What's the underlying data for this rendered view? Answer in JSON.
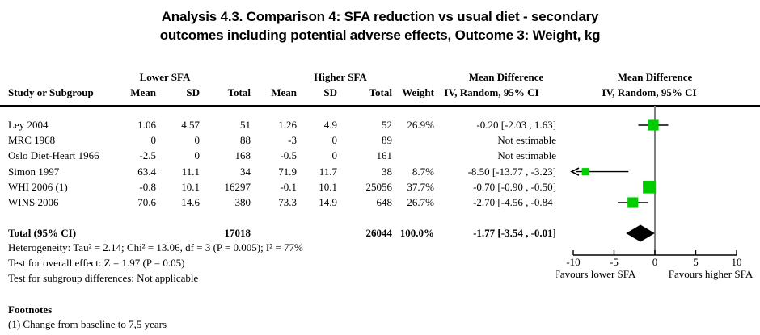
{
  "title": {
    "line1": "Analysis 4.3.   Comparison 4: SFA reduction vs usual diet - secondary",
    "line2": "outcomes including potential adverse effects, Outcome 3: Weight, kg"
  },
  "header": {
    "study": "Study or Subgroup",
    "lower_group": "Lower SFA",
    "higher_group": "Higher SFA",
    "mean": "Mean",
    "sd": "SD",
    "total": "Total",
    "weight": "Weight",
    "md_group": "Mean Difference",
    "ci_label": "IV, Random, 95% CI"
  },
  "rows": [
    {
      "study": "Ley 2004",
      "mean1": "1.06",
      "sd1": "4.57",
      "total1": "51",
      "mean2": "1.26",
      "sd2": "4.9",
      "total2": "52",
      "weight": "26.9%",
      "md": "-0.20 [-2.03 , 1.63]"
    },
    {
      "study": "MRC 1968",
      "mean1": "0",
      "sd1": "0",
      "total1": "88",
      "mean2": "-3",
      "sd2": "0",
      "total2": "89",
      "weight": "",
      "md": "Not estimable"
    },
    {
      "study": "Oslo Diet-Heart 1966",
      "mean1": "-2.5",
      "sd1": "0",
      "total1": "168",
      "mean2": "-0.5",
      "sd2": "0",
      "total2": "161",
      "weight": "",
      "md": "Not estimable"
    },
    {
      "study": "Simon 1997",
      "mean1": "63.4",
      "sd1": "11.1",
      "total1": "34",
      "mean2": "71.9",
      "sd2": "11.7",
      "total2": "38",
      "weight": "8.7%",
      "md": "-8.50 [-13.77 , -3.23]"
    },
    {
      "study": "WHI 2006 (1)",
      "mean1": "-0.8",
      "sd1": "10.1",
      "total1": "16297",
      "mean2": "-0.1",
      "sd2": "10.1",
      "total2": "25056",
      "weight": "37.7%",
      "md": "-0.70 [-0.90 , -0.50]"
    },
    {
      "study": "WINS 2006",
      "mean1": "70.6",
      "sd1": "14.6",
      "total1": "380",
      "mean2": "73.3",
      "sd2": "14.9",
      "total2": "648",
      "weight": "26.7%",
      "md": "-2.70 [-4.56 , -0.84]"
    }
  ],
  "total_row": {
    "label": "Total (95% CI)",
    "total1": "17018",
    "total2": "26044",
    "weight": "100.0%",
    "md": "-1.77 [-3.54 , -0.01]"
  },
  "stats": {
    "heterogeneity": "Heterogeneity: Tau² = 2.14; Chi² = 13.06, df = 3 (P = 0.005); I² = 77%",
    "overall_effect": "Test for overall effect: Z = 1.97 (P = 0.05)",
    "subgroup": "Test for subgroup differences: Not applicable"
  },
  "footnotes": {
    "heading": "Footnotes",
    "items": [
      "(1) Change from baseline to 7,5 years"
    ]
  },
  "chart_data": {
    "type": "forest",
    "title": "SFA reduction vs usual diet - Weight, kg - Mean Difference IV, Random, 95% CI",
    "axis": {
      "min": -10,
      "max": 10,
      "ticks": [
        -10,
        -5,
        0,
        5,
        10
      ],
      "favours_left": "Favours lower SFA",
      "favours_right": "Favours higher SFA"
    },
    "studies": [
      {
        "name": "Ley 2004",
        "row": 0,
        "md": -0.2,
        "ci_low": -2.03,
        "ci_high": 1.63,
        "weight": 26.9
      },
      {
        "name": "Simon 1997",
        "row": 3,
        "md": -8.5,
        "ci_low": -13.77,
        "ci_high": -3.23,
        "weight": 8.7
      },
      {
        "name": "WHI 2006 (1)",
        "row": 4,
        "md": -0.7,
        "ci_low": -0.9,
        "ci_high": -0.5,
        "weight": 37.7
      },
      {
        "name": "WINS 2006",
        "row": 5,
        "md": -2.7,
        "ci_low": -4.56,
        "ci_high": -0.84,
        "weight": 26.7
      }
    ],
    "total": {
      "md": -1.77,
      "ci_low": -3.54,
      "ci_high": -0.01
    },
    "marker_color": "#00cc00",
    "diamond_color": "#000000",
    "zero_line_color": "#808080",
    "line_color": "#000000"
  }
}
